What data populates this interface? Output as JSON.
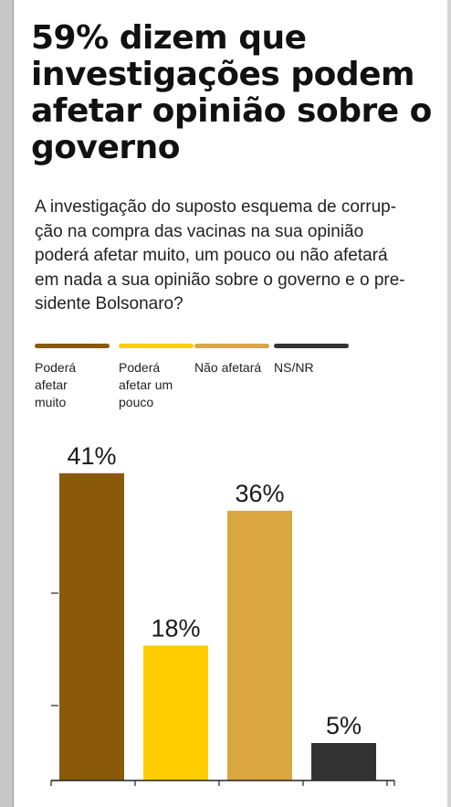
{
  "title": "59% dizem que investigações podem afetar opinião sobre o governo",
  "subtitle": "A investigação do suposto esquema de corrup-ção na compra das vacinas na sua opinião poderá afetar muito, um pouco ou não afetará em nada a sua opinião sobre o governo e o pre-sidente Bolsonaro?",
  "subtitle_lines": [
    "A investigação do suposto esquema de corrup-",
    "ção na compra das vacinas na sua opinião",
    "poderá afetar muito, um pouco ou não afetará",
    "em nada a sua opinião sobre o governo e o pre-",
    "sidente Bolsonaro?"
  ],
  "legend": [
    {
      "label_lines": [
        "Poderá",
        "afetar",
        "muito"
      ],
      "color": "#8a5a0a"
    },
    {
      "label_lines": [
        "Poderá",
        "afetar um",
        "pouco"
      ],
      "color": "#ffcc00"
    },
    {
      "label_lines": [
        "Não afetará"
      ],
      "color": "#dba740"
    },
    {
      "label_lines": [
        "NS/NR"
      ],
      "color": "#333333"
    }
  ],
  "chart_data": {
    "type": "bar",
    "categories": [
      "Poderá afetar muito",
      "Poderá afetar um pouco",
      "Não afetará",
      "NS/NR"
    ],
    "values": [
      41,
      18,
      36,
      5
    ],
    "value_labels": [
      "41%",
      "18%",
      "36%",
      "5%"
    ],
    "colors": [
      "#8a5a0a",
      "#ffcc00",
      "#dba740",
      "#333333"
    ],
    "ylim": [
      0,
      50
    ],
    "yticks": [
      0,
      10,
      25,
      50
    ],
    "grid": false,
    "legend_position": "top"
  }
}
